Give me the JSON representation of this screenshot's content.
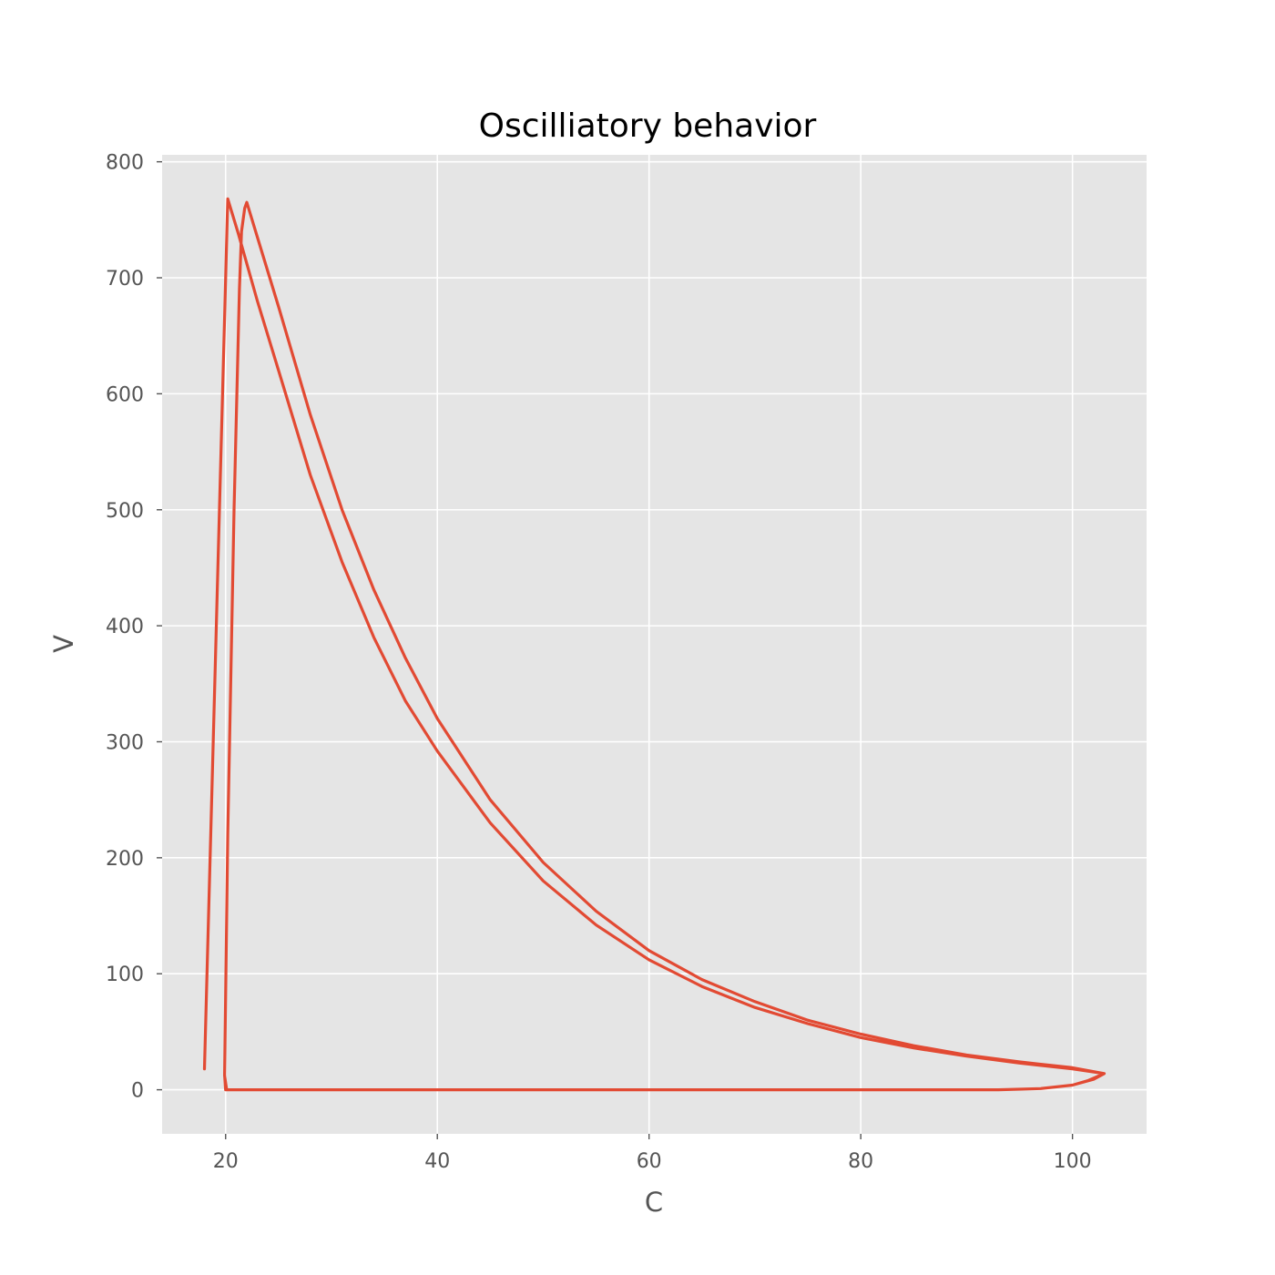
{
  "chart_data": {
    "type": "line",
    "title": "Oscilliatory behavior",
    "xlabel": "C",
    "ylabel": "V",
    "xlim": [
      14,
      107
    ],
    "ylim": [
      -38,
      806
    ],
    "xticks": [
      20,
      40,
      60,
      80,
      100
    ],
    "yticks": [
      0,
      100,
      200,
      300,
      400,
      500,
      600,
      700,
      800
    ],
    "grid": true,
    "colors": {
      "background": "#e5e5e5",
      "grid": "#ffffff",
      "line": "#e24a33",
      "tick_text": "#555555",
      "title_text": "#000000"
    },
    "series": [
      {
        "x": [
          18.0,
          20.2,
          21.2,
          23.0,
          25.0,
          28.0,
          31.0,
          34.0,
          37.0,
          40.0,
          45.0,
          50.0,
          55.0,
          60.0,
          65.0,
          70.0,
          75.0,
          80.0,
          85.0,
          90.0,
          95.0,
          100.0,
          103.0,
          101.5,
          100.0,
          97.0,
          93.0,
          80.0,
          60.0,
          40.0,
          20.0,
          19.9,
          20.2,
          20.8,
          21.3,
          21.5,
          21.8,
          22.0,
          23.0,
          25.0,
          28.0,
          31.0,
          34.0,
          37.0,
          40.0,
          45.0,
          50.0,
          55.0,
          60.0,
          65.0,
          70.0,
          75.0,
          80.0,
          85.0,
          90.0,
          95.0,
          100.0,
          103.0,
          102.0,
          100.0,
          97.0,
          93.0,
          80.0,
          60.0,
          40.0,
          20.1,
          19.9
        ],
        "y": [
          18,
          768,
          738,
          680,
          620,
          530,
          455,
          390,
          335,
          292,
          230,
          180,
          142,
          112,
          89,
          71,
          57,
          45,
          36,
          29,
          23,
          18,
          14,
          8,
          4,
          1,
          0,
          0,
          0,
          0,
          0,
          13,
          220,
          500,
          690,
          740,
          760,
          765,
          735,
          675,
          582,
          500,
          431,
          372,
          320,
          250,
          196,
          154,
          120,
          95,
          76,
          60,
          48,
          38,
          30,
          24,
          19,
          14,
          9,
          4,
          1,
          0,
          0,
          0,
          0,
          0,
          12
        ]
      }
    ]
  }
}
